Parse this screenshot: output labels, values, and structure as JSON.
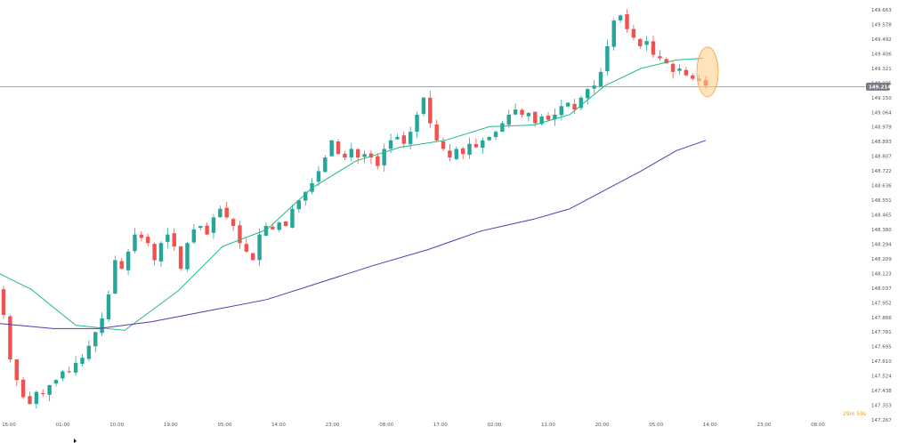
{
  "chart_data": {
    "type": "candlestick",
    "y_ticks": [
      "149.663",
      "149.578",
      "149.492",
      "149.406",
      "149.321",
      "149.235",
      "149.150",
      "149.064",
      "148.979",
      "148.893",
      "148.807",
      "148.722",
      "148.636",
      "148.551",
      "148.465",
      "148.380",
      "148.294",
      "148.209",
      "148.123",
      "148.037",
      "147.952",
      "147.866",
      "147.781",
      "147.695",
      "147.610",
      "147.524",
      "147.438",
      "147.353",
      "147.267"
    ],
    "ylim": [
      147.267,
      149.663
    ],
    "x_ticks": [
      "16:00",
      "01:00",
      "10:00",
      "19:00",
      "05:00",
      "14:00",
      "23:00",
      "08:00",
      "17:00",
      "02:00",
      "11:00",
      "20:00",
      "05:00",
      "14:00",
      "23:00",
      "08:00"
    ],
    "current_price": "149.214",
    "current_price_value": 149.214,
    "countdown": "29m 59s",
    "colors": {
      "up": "#26a69a",
      "down": "#ef5350",
      "ma_fast": "#26b98a",
      "ma_slow": "#5e35b1",
      "price_line": "#888888",
      "price_tag": "#787b86",
      "highlight": "#ffcc80",
      "highlight_stroke": "#f0a040",
      "countdown": "#ff9800"
    },
    "close_series": [
      147.88,
      147.62,
      147.5,
      147.4,
      147.36,
      147.43,
      147.42,
      147.47,
      147.5,
      147.55,
      147.55,
      147.6,
      147.63,
      147.7,
      147.78,
      147.86,
      148.0,
      148.2,
      148.15,
      148.25,
      148.35,
      148.33,
      148.3,
      148.2,
      148.3,
      148.35,
      148.28,
      148.15,
      148.3,
      148.38,
      148.4,
      148.35,
      148.45,
      148.5,
      148.45,
      148.4,
      148.3,
      148.25,
      148.2,
      148.35,
      148.4,
      148.38,
      148.42,
      148.4,
      148.5,
      148.55,
      148.6,
      148.65,
      148.72,
      148.8,
      148.9,
      148.82,
      148.8,
      148.85,
      148.8,
      148.82,
      148.8,
      148.75,
      148.85,
      148.9,
      148.92,
      148.88,
      148.95,
      149.05,
      149.15,
      149.0,
      148.9,
      148.85,
      148.8,
      148.85,
      148.82,
      148.88,
      148.86,
      148.9,
      148.92,
      148.95,
      149.0,
      149.05,
      149.08,
      149.05,
      149.06,
      149.0,
      149.04,
      149.02,
      149.05,
      149.1,
      149.12,
      149.08,
      149.15,
      149.2,
      149.22,
      149.3,
      149.45,
      149.6,
      149.63,
      149.55,
      149.5,
      149.45,
      149.48,
      149.4,
      149.38,
      149.35,
      149.3,
      149.32,
      149.28,
      149.26,
      149.25,
      149.22
    ],
    "ma_fast": [
      [
        0,
        148.12
      ],
      [
        35,
        148.03
      ],
      [
        85,
        147.82
      ],
      [
        140,
        147.79
      ],
      [
        200,
        148.02
      ],
      [
        250,
        148.28
      ],
      [
        300,
        148.38
      ],
      [
        350,
        148.62
      ],
      [
        400,
        148.78
      ],
      [
        450,
        148.86
      ],
      [
        500,
        148.9
      ],
      [
        550,
        148.98
      ],
      [
        600,
        148.99
      ],
      [
        640,
        149.05
      ],
      [
        680,
        149.22
      ],
      [
        720,
        149.32
      ],
      [
        760,
        149.37
      ],
      [
        790,
        149.38
      ]
    ],
    "ma_slow": [
      [
        0,
        147.83
      ],
      [
        60,
        147.8
      ],
      [
        110,
        147.8
      ],
      [
        170,
        147.84
      ],
      [
        240,
        147.91
      ],
      [
        300,
        147.97
      ],
      [
        360,
        148.07
      ],
      [
        420,
        148.17
      ],
      [
        480,
        148.26
      ],
      [
        540,
        148.37
      ],
      [
        600,
        148.44
      ],
      [
        640,
        148.5
      ],
      [
        680,
        148.61
      ],
      [
        720,
        148.72
      ],
      [
        760,
        148.84
      ],
      [
        793,
        148.9
      ]
    ]
  }
}
